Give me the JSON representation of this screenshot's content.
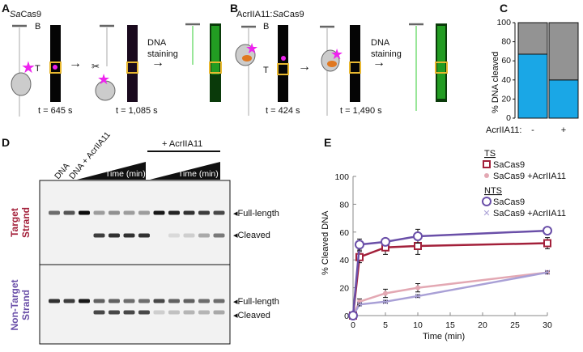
{
  "panels": {
    "a": {
      "label": "A",
      "title_italic": "Sa",
      "title_rest": "Cas9",
      "b_mark": "B",
      "t_mark": "T",
      "time1": "t = 645 s",
      "time2": "t = 1,085 s",
      "stain_line1": "DNA",
      "stain_line2": "staining"
    },
    "b": {
      "label": "B",
      "title_prefix": "AcrIIA11:",
      "title_italic": "Sa",
      "title_rest": "Cas9",
      "b_mark": "B",
      "t_mark": "T",
      "time1": "t = 424 s",
      "time2": "t = 1,490 s",
      "stain_line1": "DNA",
      "stain_line2": "staining"
    },
    "c": {
      "label": "C"
    },
    "d": {
      "label": "D",
      "lane_labels": [
        "DNA",
        "DNA + AcrIIA11"
      ],
      "time_label": "Time (min)",
      "acr_label": "+ AcrIIA11",
      "full_length": "Full-length",
      "cleaved": "Cleaved",
      "target_strand": [
        "Target",
        "Strand"
      ],
      "nontarget_strand": [
        "Non-Target",
        "Strand"
      ]
    },
    "e": {
      "label": "E"
    }
  },
  "colors": {
    "cleaved": "#1aa7e6",
    "uncleaved": "#939393",
    "ts": "#a3203a",
    "ts_acr": "#e3a8b3",
    "nts": "#6a4fa8",
    "nts_acr": "#a9a0d6",
    "magenta": "#ee22ee",
    "green": "#22cc22",
    "yellow": "#e8b830"
  },
  "chart_data": [
    {
      "type": "bar",
      "stacked": true,
      "ylabel": "% DNA cleaved",
      "ylim": [
        0,
        100
      ],
      "yticks": [
        0,
        20,
        40,
        60,
        80,
        100
      ],
      "xlabel": "AcrIIA11:",
      "categories": [
        "-",
        "+"
      ],
      "series": [
        {
          "values": [
            67,
            40
          ],
          "color": "#1aa7e6"
        },
        {
          "values": [
            33,
            60
          ],
          "color": "#939393"
        }
      ]
    },
    {
      "type": "line",
      "xlabel": "Time (min)",
      "ylabel": "% Cleaved DNA",
      "xlim": [
        0,
        30
      ],
      "ylim": [
        0,
        100
      ],
      "xticks": [
        0,
        5,
        10,
        15,
        20,
        25,
        30
      ],
      "yticks": [
        0,
        20,
        40,
        60,
        80,
        100
      ],
      "legend": {
        "groups": [
          "TS",
          "NTS"
        ],
        "placement": "top-right"
      },
      "x": [
        0,
        1,
        5,
        10,
        30
      ],
      "series": [
        {
          "group": "TS",
          "name": "SaCas9",
          "marker": "square",
          "color": "#a3203a",
          "values": [
            0,
            42,
            49,
            50,
            52
          ],
          "err": [
            0,
            4,
            5,
            6,
            4
          ]
        },
        {
          "group": "TS",
          "name": "SaCas9 +AcrIIA11",
          "marker": "asterisk",
          "color": "#e3a8b3",
          "values": [
            0,
            10,
            16,
            20,
            31
          ],
          "err": [
            0,
            2,
            3,
            3,
            1
          ]
        },
        {
          "group": "NTS",
          "name": "SaCas9",
          "marker": "circle",
          "color": "#6a4fa8",
          "values": [
            0,
            51,
            53,
            57,
            61
          ],
          "err": [
            0,
            4,
            2,
            5,
            2
          ]
        },
        {
          "group": "NTS",
          "name": "SaCas9 +AcrIIA11",
          "marker": "cross",
          "color": "#a9a0d6",
          "values": [
            0,
            8,
            10,
            14,
            31
          ],
          "err": [
            0,
            1,
            1,
            1,
            1
          ]
        }
      ]
    }
  ]
}
